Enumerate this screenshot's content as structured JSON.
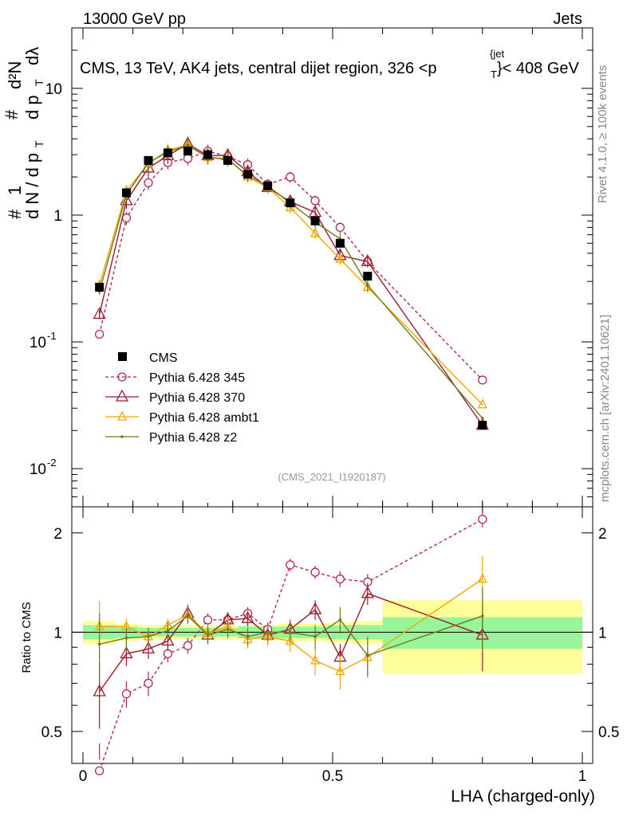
{
  "header": {
    "left": "13000 GeV pp",
    "right": "Jets"
  },
  "plot_title": "CMS, 13 TeV, AK4 jets, central dijet region, 326 <p",
  "plot_title_sub": "T",
  "plot_title_sup": "{jet",
  "plot_title_tail": "}< 408 GeV",
  "ylabel_main": {
    "num": "#  1",
    "den": "d N / d p",
    "sub": "T",
    "num2": "# d²N",
    "den2": "d p  dλ"
  },
  "ylabel_ratio": "Ratio to CMS",
  "xlabel": "LHA (charged-only)",
  "analysis_id": "(CMS_2021_I1920187)",
  "side_text_top": "Rivet 4.1.0, ≥ 100k events",
  "side_text_bottom": "mcplots.cern.ch [arXiv:2401.10621]",
  "main_ticks": [
    {
      "label": "10",
      "exp": "-2"
    },
    {
      "label": "10",
      "exp": "-1"
    },
    {
      "label": "1",
      "exp": ""
    },
    {
      "label": "10",
      "exp": ""
    }
  ],
  "ratio_ticks": [
    "0.5",
    "1",
    "2"
  ],
  "x_ticks": [
    "0",
    "0.5",
    "1"
  ],
  "colors": {
    "cms": "#000000",
    "p345": "#b02a48",
    "p370": "#9b1b2e",
    "ambt1": "#f0a800",
    "z2": "#6f7a1a",
    "band_inner": "#99f599",
    "band_outer": "#ffff99"
  },
  "chart_data": {
    "type": "scatter",
    "xlim": [
      0,
      1
    ],
    "main_ylim": [
      0.005,
      30
    ],
    "ratio_ylim": [
      0.4,
      2.4
    ],
    "x": [
      0.033,
      0.087,
      0.131,
      0.17,
      0.21,
      0.25,
      0.29,
      0.33,
      0.37,
      0.415,
      0.465,
      0.515,
      0.57,
      0.8
    ],
    "x_bins": [
      [
        0.0,
        0.065
      ],
      [
        0.065,
        0.11
      ],
      [
        0.11,
        0.15
      ],
      [
        0.15,
        0.19
      ],
      [
        0.19,
        0.23
      ],
      [
        0.23,
        0.27
      ],
      [
        0.27,
        0.31
      ],
      [
        0.31,
        0.35
      ],
      [
        0.35,
        0.39
      ],
      [
        0.39,
        0.44
      ],
      [
        0.44,
        0.49
      ],
      [
        0.49,
        0.54
      ],
      [
        0.54,
        0.6
      ],
      [
        0.6,
        1.0
      ]
    ],
    "legend": [
      "CMS",
      "Pythia 6.428 345",
      "Pythia 6.428 370",
      "Pythia 6.428 ambt1",
      "Pythia 6.428 z2"
    ],
    "series": [
      {
        "name": "CMS",
        "key": "cms",
        "values": [
          0.27,
          1.5,
          2.7,
          3.1,
          3.2,
          3.0,
          2.7,
          2.1,
          1.7,
          1.25,
          0.9,
          0.6,
          0.33,
          0.022
        ]
      },
      {
        "name": "Pythia 6.428 345",
        "key": "p345",
        "style": "dashed",
        "marker": "circle",
        "values": [
          0.115,
          0.95,
          1.8,
          2.6,
          2.8,
          3.2,
          2.9,
          2.5,
          1.75,
          2.0,
          1.3,
          0.8,
          0.43,
          0.05
        ],
        "errors": [
          0.03,
          0.06,
          0.06,
          0.06,
          0.06,
          0.06,
          0.06,
          0.06,
          0.05,
          0.05,
          0.05,
          0.05,
          0.04,
          0.006
        ]
      },
      {
        "name": "Pythia 6.428 370",
        "key": "p370",
        "style": "solid",
        "marker": "triangle",
        "values": [
          0.165,
          1.3,
          2.35,
          2.95,
          3.65,
          2.95,
          2.95,
          2.2,
          1.65,
          1.28,
          1.05,
          0.48,
          0.43,
          0.022
        ],
        "errors": [
          0.04,
          0.07,
          0.07,
          0.07,
          0.07,
          0.07,
          0.07,
          0.06,
          0.05,
          0.05,
          0.06,
          0.05,
          0.05,
          0.005
        ]
      },
      {
        "name": "Pythia 6.428 ambt1",
        "key": "ambt1",
        "style": "solid",
        "marker": "triangle-small",
        "values": [
          0.28,
          1.55,
          2.55,
          3.25,
          3.6,
          2.85,
          2.8,
          2.0,
          1.65,
          1.15,
          0.72,
          0.45,
          0.27,
          0.032
        ],
        "errors": [
          0.03,
          0.06,
          0.06,
          0.06,
          0.06,
          0.06,
          0.06,
          0.05,
          0.05,
          0.05,
          0.05,
          0.05,
          0.05,
          0.006
        ]
      },
      {
        "name": "Pythia 6.428 z2",
        "key": "z2",
        "style": "solid",
        "marker": "dot",
        "values": [
          0.25,
          1.45,
          2.6,
          3.15,
          3.55,
          2.85,
          2.75,
          2.05,
          1.7,
          1.25,
          0.88,
          0.65,
          0.28,
          0.025
        ],
        "errors": [
          0.03,
          0.06,
          0.06,
          0.06,
          0.06,
          0.06,
          0.06,
          0.05,
          0.05,
          0.05,
          0.05,
          0.05,
          0.05,
          0.006
        ]
      }
    ],
    "ratios": {
      "p345": [
        0.38,
        0.65,
        0.7,
        0.86,
        0.91,
        1.09,
        1.09,
        1.14,
        1.02,
        1.6,
        1.52,
        1.45,
        1.42,
        2.2
      ],
      "p370": [
        0.66,
        0.86,
        0.89,
        0.94,
        1.14,
        0.98,
        1.09,
        1.1,
        0.98,
        1.02,
        1.17,
        0.84,
        1.31,
        0.98
      ],
      "ambt1": [
        1.04,
        1.04,
        0.97,
        1.05,
        1.13,
        0.99,
        1.04,
        0.95,
        0.97,
        0.94,
        0.82,
        0.76,
        0.84,
        1.45
      ],
      "z2": [
        0.92,
        0.96,
        0.97,
        1.01,
        1.12,
        0.98,
        1.02,
        0.97,
        1.0,
        1.0,
        0.97,
        1.09,
        0.85,
        1.12
      ]
    },
    "ratio_errors": {
      "p345": [
        0.08,
        0.06,
        0.06,
        0.05,
        0.05,
        0.05,
        0.05,
        0.05,
        0.05,
        0.07,
        0.07,
        0.08,
        0.08,
        0.12
      ],
      "p370": [
        0.15,
        0.07,
        0.06,
        0.06,
        0.07,
        0.06,
        0.06,
        0.06,
        0.06,
        0.07,
        0.08,
        0.08,
        0.1,
        0.22
      ],
      "ambt1": [
        0.2,
        0.06,
        0.06,
        0.05,
        0.06,
        0.06,
        0.06,
        0.06,
        0.06,
        0.07,
        0.08,
        0.09,
        0.1,
        0.25
      ],
      "z2": [
        0.22,
        0.07,
        0.06,
        0.06,
        0.06,
        0.06,
        0.06,
        0.06,
        0.06,
        0.07,
        0.08,
        0.1,
        0.12,
        0.25
      ]
    },
    "band_inner": [
      0.05,
      0.04,
      0.03,
      0.03,
      0.03,
      0.03,
      0.03,
      0.04,
      0.04,
      0.04,
      0.04,
      0.05,
      0.05,
      0.11
    ],
    "band_outer": [
      0.08,
      0.06,
      0.05,
      0.05,
      0.05,
      0.05,
      0.05,
      0.05,
      0.05,
      0.06,
      0.06,
      0.07,
      0.08,
      0.25
    ]
  }
}
